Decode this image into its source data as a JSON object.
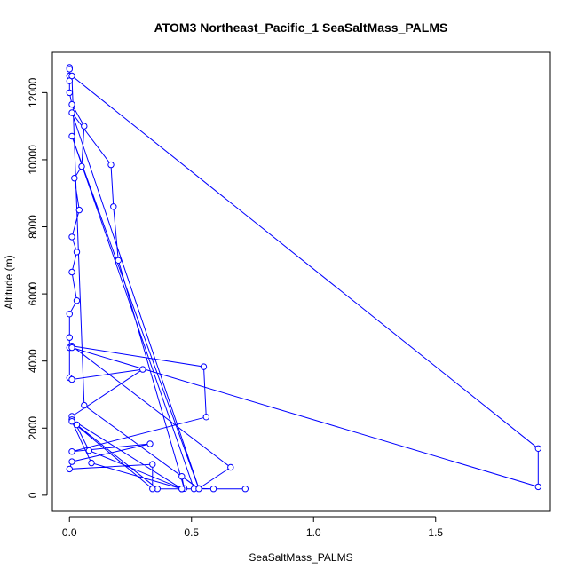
{
  "chart_data": {
    "type": "line",
    "title": "ATOM3 Northeast_Pacific_1 SeaSaltMass_PALMS",
    "xlabel": "SeaSaltMass_PALMS",
    "ylabel": "Altitude (m)",
    "xlim": [
      -0.07,
      1.97
    ],
    "ylim": [
      -480,
      13200
    ],
    "x_ticks": [
      0,
      0.5,
      1,
      1.5
    ],
    "x_tick_labels": [
      "0.0",
      "0.5",
      "1.0",
      "1.5"
    ],
    "y_ticks": [
      0,
      2000,
      4000,
      6000,
      8000,
      10000,
      12000
    ],
    "y_tick_labels": [
      "0",
      "2000",
      "4000",
      "6000",
      "8000",
      "10000",
      "12000"
    ],
    "grid": false,
    "legend": "none",
    "markers": "open-circle",
    "color": "#0000ff",
    "series": [
      {
        "x": [
          0,
          0,
          0,
          0,
          0,
          0.01,
          0.06,
          0.05,
          0.02,
          0.04,
          0.01,
          0.03,
          0.01,
          0.03,
          0,
          0,
          0,
          0,
          0.01,
          0.3,
          0.01,
          0.08,
          0.46,
          0.01,
          0.03,
          0.36,
          0.46,
          0.72,
          0.59,
          0.53,
          0.01,
          0.17,
          0.18,
          0.2,
          0.47,
          0.46,
          0.53,
          0.66,
          0.01,
          0.55,
          0.56,
          0.01,
          0.33,
          0.01,
          0,
          0.34,
          0.34,
          0.01,
          0.09,
          0.46,
          0.51,
          0.01,
          0.53,
          0.06,
          0.01,
          1.92,
          1.92,
          0.01
        ],
        "y": [
          12750,
          12700,
          12500,
          12350,
          12000,
          11650,
          11000,
          9800,
          9450,
          8500,
          7700,
          7250,
          6650,
          5800,
          5400,
          4700,
          4400,
          3500,
          3450,
          3750,
          2350,
          1330,
          190,
          2250,
          2100,
          190,
          190,
          190,
          190,
          200,
          11400,
          9850,
          8600,
          7000,
          200,
          560,
          200,
          830,
          4450,
          3830,
          2330,
          1300,
          1530,
          1000,
          780,
          920,
          190,
          2200,
          960,
          190,
          190,
          10700,
          190,
          2680,
          12500,
          1390,
          250,
          4400
        ]
      }
    ]
  }
}
